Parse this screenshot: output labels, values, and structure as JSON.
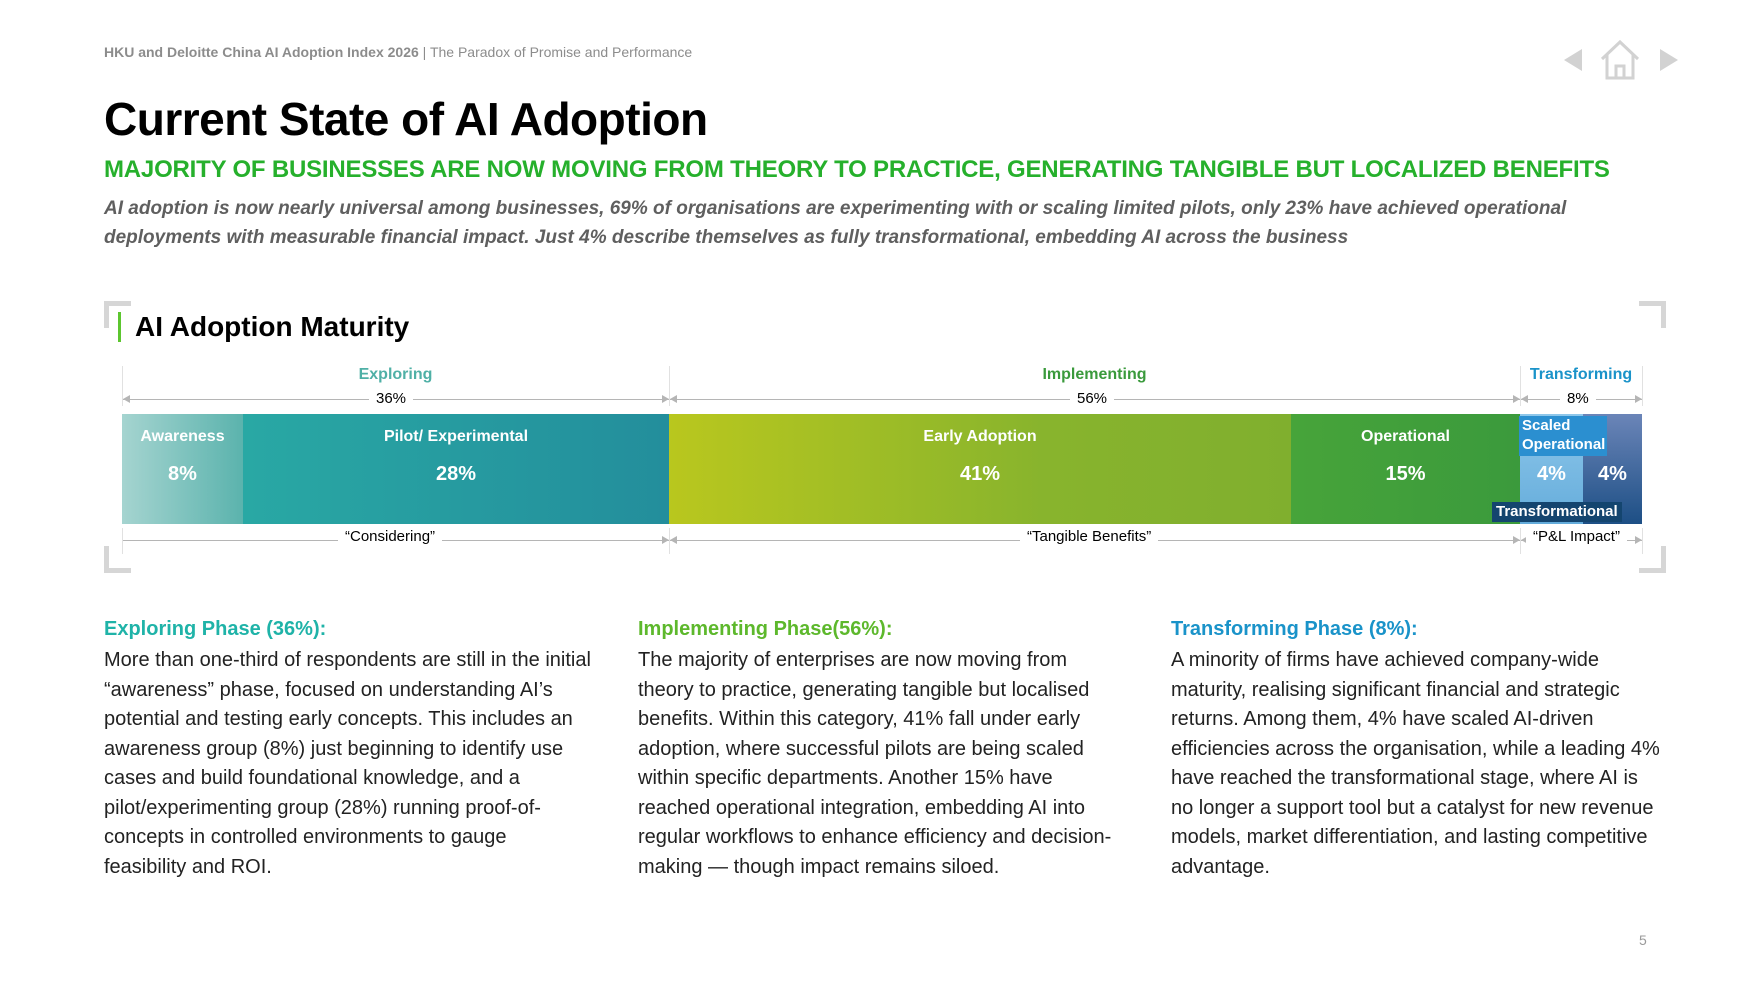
{
  "header": {
    "report_title": "HKU and Deloitte China AI Adoption Index 2026",
    "separator": " | ",
    "report_subtitle": "The Paradox of Promise and Performance"
  },
  "nav": {
    "prev_icon": "triangle-left-icon",
    "home_icon": "home-icon",
    "next_icon": "triangle-right-icon"
  },
  "title": "Current State of AI Adoption",
  "subtitle": "MAJORITY OF BUSINESSES ARE NOW MOVING FROM THEORY TO PRACTICE, GENERATING TANGIBLE BUT LOCALIZED BENEFITS",
  "lead": "AI adoption is now nearly universal among businesses, 69% of organisations are experimenting with or scaling limited pilots, only 23% have achieved operational deployments with measurable financial impact. Just 4% describe themselves as fully transformational, embedding AI across the business",
  "chart_section_title": "AI Adoption Maturity",
  "chart_data": {
    "type": "bar",
    "orientation": "horizontal-stacked",
    "title": "AI Adoption Maturity",
    "phases": [
      {
        "name": "Exploring",
        "value": 36,
        "label": "36%",
        "quote": "“Considering”",
        "color": "#4fb0a6"
      },
      {
        "name": "Implementing",
        "value": 56,
        "label": "56%",
        "quote": "“Tangible Benefits”",
        "color": "#3a9a3c"
      },
      {
        "name": "Transforming",
        "value": 8,
        "label": "8%",
        "quote": "“P&L Impact”",
        "color": "#1a93c9"
      }
    ],
    "segments": [
      {
        "name": "Awareness",
        "value": 8,
        "label": "8%",
        "phase": "Exploring"
      },
      {
        "name": "Pilot/ Experimental",
        "value": 28,
        "label": "28%",
        "phase": "Exploring"
      },
      {
        "name": "Early Adoption",
        "value": 41,
        "label": "41%",
        "phase": "Implementing"
      },
      {
        "name": "Operational",
        "value": 15,
        "label": "15%",
        "phase": "Implementing"
      },
      {
        "name": "Scaled Operational",
        "value": 4,
        "label": "4%",
        "phase": "Transforming"
      },
      {
        "name": "Transformational",
        "value": 4,
        "label": "4%",
        "phase": "Transforming"
      }
    ]
  },
  "columns": [
    {
      "heading": "Exploring Phase (36%):",
      "color": "#1fb3a8",
      "body": "More than one-third of respondents are still in the initial “awareness” phase, focused on understanding AI’s potential and testing early concepts. This includes an awareness group (8%) just beginning to identify use cases and build foundational knowledge, and a pilot/experimenting group (28%) running proof-of-concepts in controlled environments to gauge feasibility and ROI."
    },
    {
      "heading": "Implementing Phase(56%):",
      "color": "#5db82c",
      "body": "The majority of enterprises are now moving from theory to practice, generating tangible but localised benefits. Within this category, 41% fall under early adoption, where successful pilots are being scaled within specific departments. Another 15% have reached operational integration, embedding AI into regular workflows to enhance efficiency and decision-making — though impact remains siloed."
    },
    {
      "heading": "Transforming Phase (8%):",
      "color": "#1a93c9",
      "body": "A minority of firms have achieved company-wide maturity, realising significant financial and strategic returns. Among them, 4% have scaled AI-driven efficiencies across the organisation, while a leading 4% have reached the transformational stage, where AI is no longer a support tool but a catalyst for new revenue models, market differentiation, and lasting competitive advantage."
    }
  ],
  "page_number": "5"
}
